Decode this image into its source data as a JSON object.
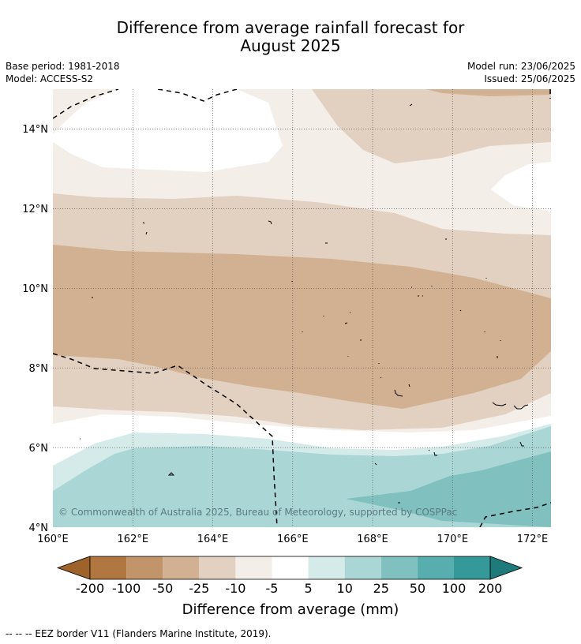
{
  "title_line1": "Difference from average rainfall forecast for",
  "title_line2": "August 2025",
  "base_period": "Base period: 1981-2018",
  "model": "Model: ACCESS-S2",
  "model_run": "Model run: 23/06/2025",
  "issued": "Issued: 25/06/2025",
  "copyright": "© Commonwealth of Australia 2025, Bureau of Meteorology, supported by COSPPac",
  "lat_labels": [
    "14°N",
    "12°N",
    "10°N",
    "8°N",
    "6°N",
    "4°N"
  ],
  "lon_labels": [
    "160°E",
    "162°E",
    "164°E",
    "166°E",
    "168°E",
    "170°E",
    "172°E"
  ],
  "colorbar": {
    "title": "Difference from average (mm)",
    "labels": [
      "-200",
      "-100",
      "-50",
      "-25",
      "-10",
      "-5",
      "5",
      "10",
      "25",
      "50",
      "100",
      "200"
    ],
    "colors": [
      "#9e622b",
      "#b07840",
      "#c19469",
      "#d2b092",
      "#e2d0c0",
      "#f4eee9",
      "#ffffff",
      "#d5ebea",
      "#aad7d6",
      "#80c1c0",
      "#58aeae",
      "#35999a",
      "#1f7a7c"
    ]
  },
  "footer": "-- -- -- EEZ border V11 (Flanders Marine Institute, 2019)."
}
